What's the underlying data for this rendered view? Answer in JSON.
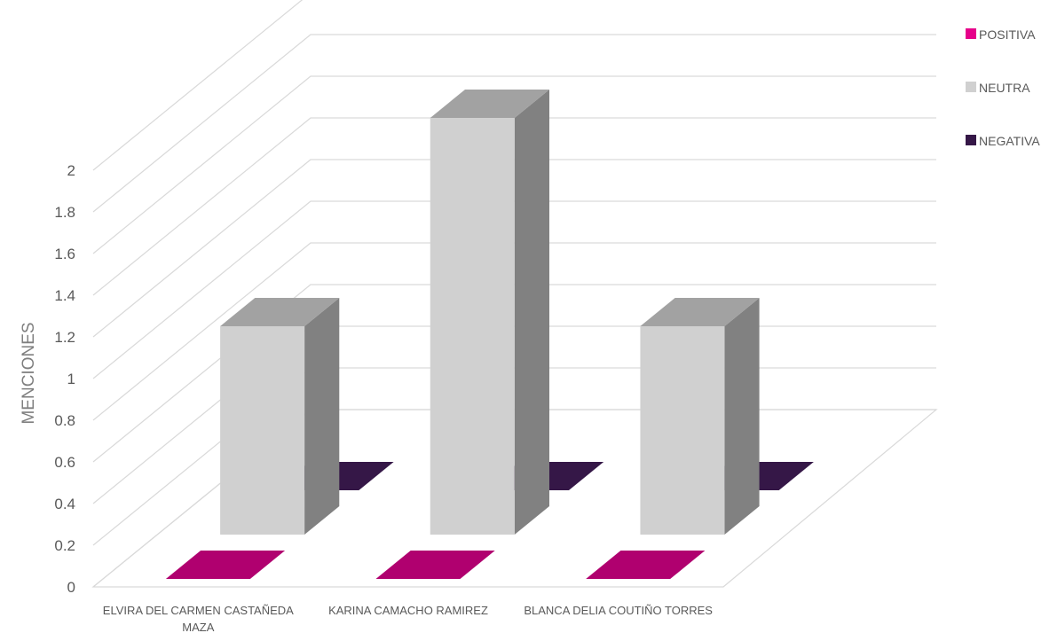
{
  "chart_data": {
    "type": "bar",
    "style": "3d-clustered-column",
    "categories": [
      [
        "ELVIRA DEL CARMEN CASTAÑEDA",
        "MAZA"
      ],
      [
        "KARINA CAMACHO RAMIREZ"
      ],
      [
        "BLANCA DELIA COUTIÑO TORRES"
      ]
    ],
    "series": [
      {
        "name": "POSITIVA",
        "values": [
          0,
          0,
          0
        ],
        "color": "#b0006f",
        "legend_color": "#e6008a"
      },
      {
        "name": "NEUTRA",
        "values": [
          1,
          2,
          1
        ],
        "color": "#d0d0d0",
        "legend_color": "#d0d0d0"
      },
      {
        "name": "NEGATIVA",
        "values": [
          0,
          0,
          0
        ],
        "color": "#351747",
        "legend_color": "#351747"
      }
    ],
    "ylabel": "MENCIONES",
    "xlabel": "",
    "title": "",
    "ylim": [
      0,
      2
    ],
    "yticks": [
      "0",
      "0.2",
      "0.4",
      "0.6",
      "0.8",
      "1",
      "1.2",
      "1.4",
      "1.6",
      "1.8",
      "2"
    ],
    "grid": true,
    "legend_position": "top-right"
  }
}
